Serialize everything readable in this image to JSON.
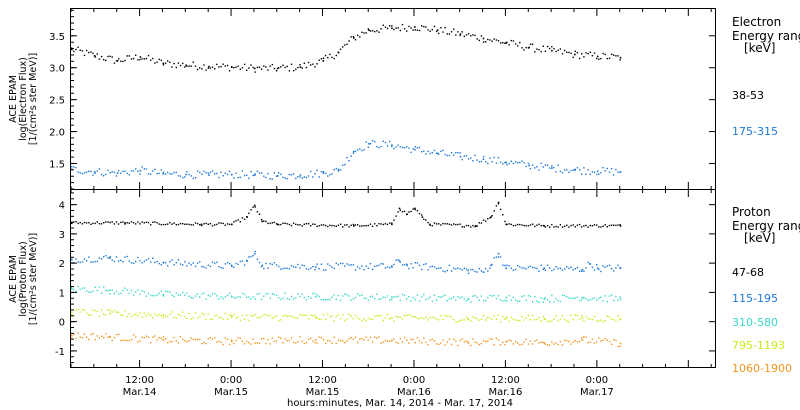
{
  "x_axis": {
    "title": "hours:minutes, Mar. 14, 2014 - Mar. 17, 2014",
    "ticks": [
      {
        "t": 12,
        "time": "12:00",
        "date": "Mar.14"
      },
      {
        "t": 24,
        "time": "0:00",
        "date": "Mar.15"
      },
      {
        "t": 36,
        "time": "12:00",
        "date": "Mar.15"
      },
      {
        "t": 48,
        "time": "0:00",
        "date": "Mar.16"
      },
      {
        "t": 60,
        "time": "12:00",
        "date": "Mar.16"
      },
      {
        "t": 72,
        "time": "0:00",
        "date": "Mar.17"
      }
    ],
    "range_hours_from_mar14_0000": [
      3.0,
      87.5
    ]
  },
  "chart_data": [
    {
      "type": "scatter",
      "panel": "electron",
      "ylabel": [
        "ACE EPAM",
        "log(Electron Flux)",
        "[1/(cm²s ster MeV)]"
      ],
      "ylim": [
        1.1,
        3.92
      ],
      "y_ticks": [
        "1.5",
        "2.0",
        "2.5",
        "3.0",
        "3.5"
      ],
      "legend_title": [
        "Electron",
        "Energy ranges",
        "[keV]"
      ],
      "series": [
        {
          "name": "38-53",
          "color": "#000000",
          "x": [
            3,
            6,
            9,
            12,
            15,
            18,
            21,
            24,
            27,
            30,
            33,
            36,
            38,
            40,
            42,
            45,
            48,
            51,
            54,
            57,
            60,
            63,
            66,
            69,
            72,
            75
          ],
          "y": [
            3.3,
            3.2,
            3.12,
            3.18,
            3.08,
            3.05,
            3.03,
            3.02,
            3.0,
            3.0,
            3.02,
            3.12,
            3.25,
            3.48,
            3.6,
            3.63,
            3.65,
            3.6,
            3.54,
            3.47,
            3.4,
            3.33,
            3.28,
            3.22,
            3.19,
            3.17
          ]
        },
        {
          "name": "175-315",
          "color": "#1e78d6",
          "x": [
            3,
            6,
            9,
            12,
            15,
            18,
            21,
            24,
            27,
            30,
            33,
            36,
            38,
            40,
            42,
            45,
            48,
            51,
            54,
            57,
            60,
            63,
            66,
            69,
            72,
            75
          ],
          "y": [
            1.42,
            1.38,
            1.36,
            1.4,
            1.35,
            1.34,
            1.33,
            1.34,
            1.33,
            1.32,
            1.33,
            1.36,
            1.4,
            1.7,
            1.82,
            1.8,
            1.73,
            1.67,
            1.62,
            1.58,
            1.53,
            1.48,
            1.44,
            1.41,
            1.39,
            1.38
          ]
        }
      ]
    },
    {
      "type": "scatter",
      "panel": "proton",
      "ylabel": [
        "ACE EPAM",
        "log(Proton Flux)",
        "[1/(cm²s ster MeV)]"
      ],
      "ylim": [
        -1.55,
        4.5
      ],
      "y_ticks": [
        "-1",
        "0",
        "1",
        "2",
        "3",
        "4"
      ],
      "legend_title": [
        "Proton",
        "Energy ranges",
        "[keV]"
      ],
      "series": [
        {
          "name": "47-68",
          "color": "#000000",
          "x": [
            3,
            10,
            20,
            24,
            26,
            27,
            28,
            30,
            40,
            45,
            46,
            47,
            48,
            49,
            50,
            56,
            58,
            59,
            60,
            65,
            75
          ],
          "y": [
            3.4,
            3.4,
            3.35,
            3.35,
            3.6,
            4.0,
            3.45,
            3.35,
            3.3,
            3.35,
            3.9,
            3.7,
            3.9,
            3.6,
            3.35,
            3.3,
            3.6,
            4.1,
            3.35,
            3.3,
            3.3
          ]
        },
        {
          "name": "115-195",
          "color": "#1e78d6",
          "x": [
            3,
            8,
            15,
            24,
            26,
            27,
            28,
            35,
            45,
            46,
            47,
            55,
            57,
            58,
            59,
            60,
            65,
            70,
            71,
            72,
            75
          ],
          "y": [
            2.15,
            2.2,
            2.05,
            1.92,
            2.1,
            2.35,
            1.95,
            1.9,
            1.9,
            2.1,
            1.95,
            1.78,
            1.72,
            1.95,
            2.35,
            1.85,
            1.85,
            1.8,
            2.0,
            1.85,
            1.85
          ]
        },
        {
          "name": "310-580",
          "color": "#3ad7c9",
          "x": [
            3,
            8,
            15,
            24,
            35,
            45,
            55,
            60,
            65,
            70,
            75
          ],
          "y": [
            1.15,
            1.1,
            0.95,
            0.88,
            0.88,
            0.86,
            0.8,
            0.85,
            0.8,
            0.85,
            0.8
          ]
        },
        {
          "name": "795-1193",
          "color": "#c8ea1c",
          "x": [
            3,
            8,
            15,
            24,
            35,
            45,
            55,
            60,
            65,
            70,
            75
          ],
          "y": [
            0.35,
            0.3,
            0.25,
            0.18,
            0.17,
            0.15,
            0.13,
            0.14,
            0.12,
            0.15,
            0.12
          ]
        },
        {
          "name": "1060-1900",
          "color": "#f0961e",
          "x": [
            3,
            8,
            15,
            24,
            35,
            45,
            55,
            60,
            65,
            70,
            75
          ],
          "y": [
            -0.45,
            -0.5,
            -0.6,
            -0.65,
            -0.6,
            -0.62,
            -0.68,
            -0.65,
            -0.7,
            -0.6,
            -0.72
          ]
        }
      ]
    }
  ]
}
